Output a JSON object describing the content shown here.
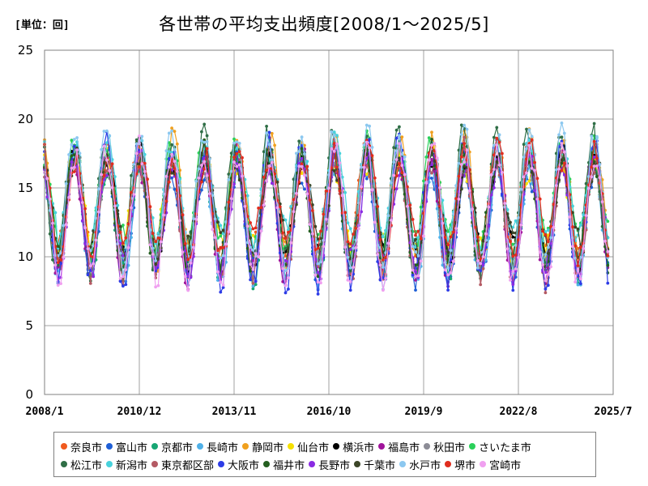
{
  "unit_label": "[単位：回]",
  "title": "各世帯の平均支出頻度[2008/1～2025/5]",
  "chart_data": {
    "type": "line",
    "title": "各世帯の平均支出頻度[2008/1～2025/5]",
    "ylabel": "[単位：回]",
    "ylim": [
      0,
      25
    ],
    "y_ticks": [
      "0",
      "5",
      "10",
      "15",
      "20",
      "25"
    ],
    "x_ticks": [
      "2008/1",
      "2010/12",
      "2013/11",
      "2016/10",
      "2019/9",
      "2022/8",
      "2025/7"
    ],
    "grid": true,
    "legend_position": "bottom",
    "series": [
      {
        "name": "奈良市",
        "color": "#f05a1e"
      },
      {
        "name": "富山市",
        "color": "#1f5fd6"
      },
      {
        "name": "京都市",
        "color": "#17a673"
      },
      {
        "name": "長崎市",
        "color": "#4fb0e8"
      },
      {
        "name": "静岡市",
        "color": "#f0a01e"
      },
      {
        "name": "仙台市",
        "color": "#f5e000"
      },
      {
        "name": "横浜市",
        "color": "#000000"
      },
      {
        "name": "福島市",
        "color": "#a0149b"
      },
      {
        "name": "秋田市",
        "color": "#8c8c96"
      },
      {
        "name": "さいたま市",
        "color": "#2ad05a"
      },
      {
        "name": "松江市",
        "color": "#2f6e46"
      },
      {
        "name": "新潟市",
        "color": "#48d2dc"
      },
      {
        "name": "東京都区部",
        "color": "#b45a64"
      },
      {
        "name": "大阪市",
        "color": "#2d3ce6"
      },
      {
        "name": "福井市",
        "color": "#245f20"
      },
      {
        "name": "長野市",
        "color": "#8a2be2"
      },
      {
        "name": "千葉市",
        "color": "#3c4628"
      },
      {
        "name": "水戸市",
        "color": "#8cc8f0"
      },
      {
        "name": "堺市",
        "color": "#e02d1e"
      },
      {
        "name": "宮崎市",
        "color": "#f0a0f0"
      }
    ]
  }
}
